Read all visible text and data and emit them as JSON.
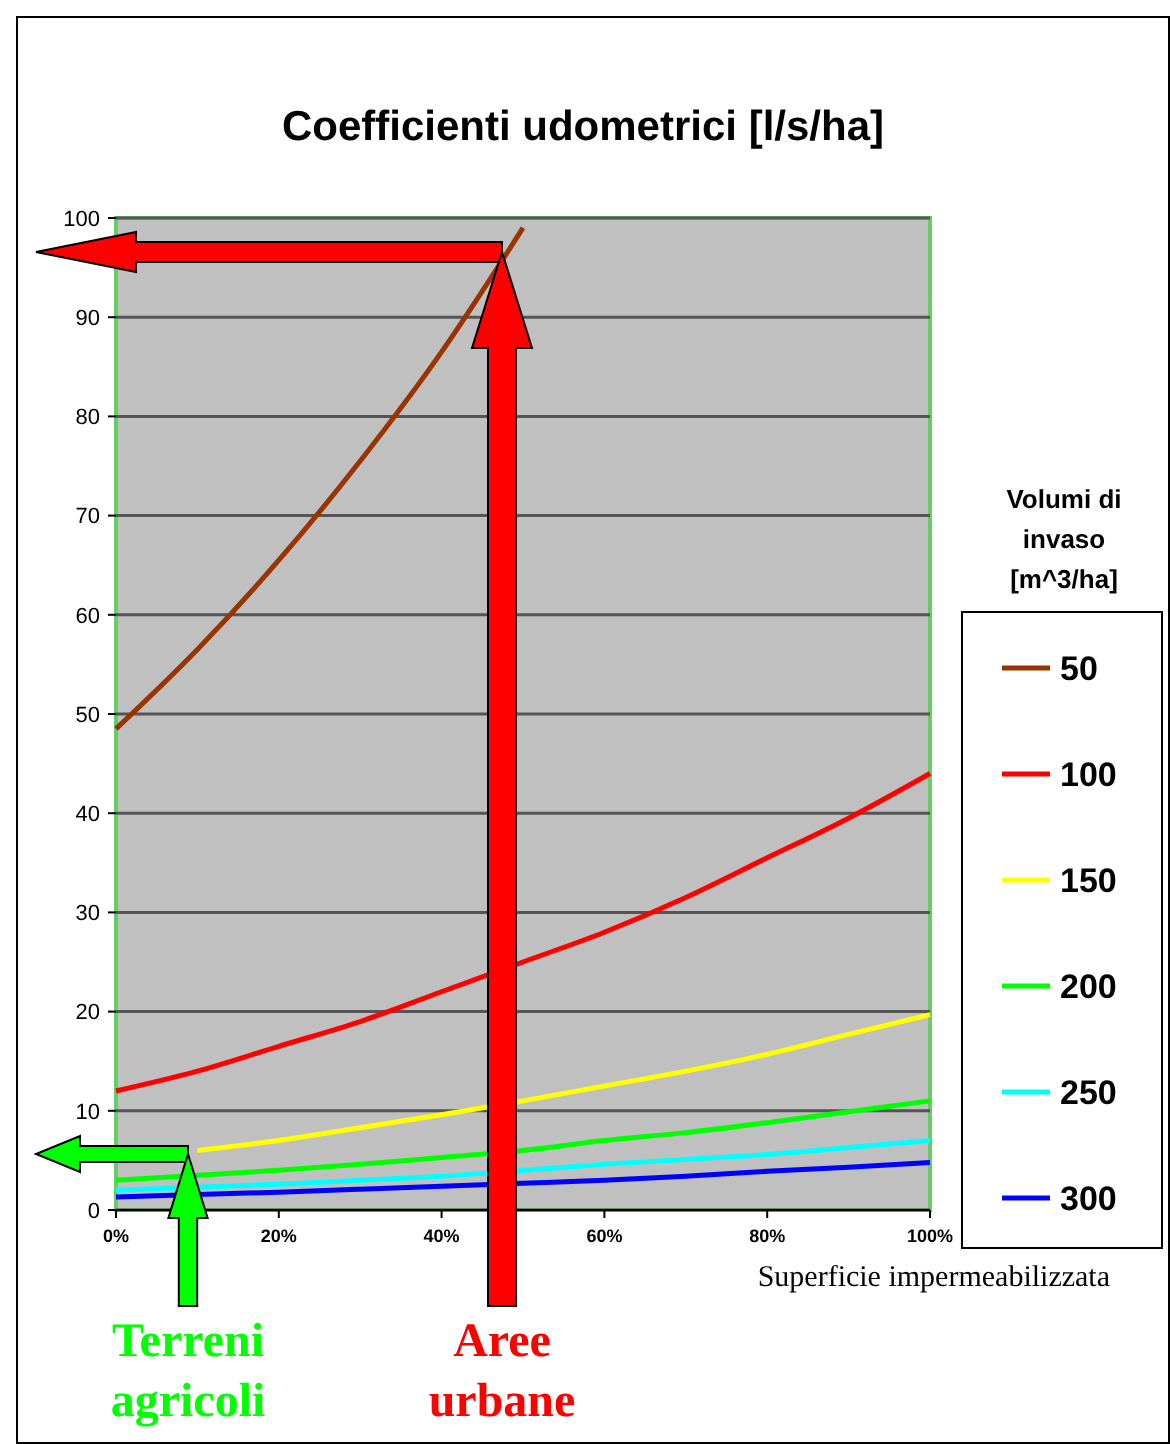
{
  "chart_data": {
    "type": "line",
    "title": "Coefficienti udometrici [l/s/ha]",
    "xlabel": "Superficie impermeabilizzata",
    "legend_title": "Volumi di invaso [m^3/ha]",
    "x": [
      0,
      0.1,
      0.2,
      0.3,
      0.4,
      0.5,
      0.6,
      0.7,
      0.8,
      0.9,
      1
    ],
    "series": [
      {
        "name": "50",
        "color": "#993300",
        "x": [
          0,
          0.1,
          0.2,
          0.3,
          0.4,
          0.5
        ],
        "values": [
          48.5,
          56.5,
          65.5,
          75.5,
          86.5,
          99
        ]
      },
      {
        "name": "100",
        "color": "#ff0000",
        "values": [
          12,
          14,
          16.5,
          19,
          22,
          25,
          28,
          31.5,
          35.5,
          39.5,
          44
        ]
      },
      {
        "name": "150",
        "color": "#ffff00",
        "values": [
          null,
          6,
          7,
          8.3,
          9.6,
          11,
          12.5,
          14,
          15.7,
          17.7,
          19.7
        ]
      },
      {
        "name": "200",
        "color": "#00ff00",
        "x": [
          0,
          0.2,
          0.3,
          0.4,
          0.5,
          0.6,
          0.7,
          0.8,
          0.9,
          1
        ],
        "values": [
          3,
          4,
          4.6,
          5.3,
          6,
          7,
          7.8,
          8.8,
          9.9,
          11
        ]
      },
      {
        "name": "250",
        "color": "#00ffff",
        "x": [
          0,
          0.2,
          0.3,
          0.4,
          0.5,
          0.6,
          0.7,
          0.8,
          0.9,
          1
        ],
        "values": [
          2,
          2.6,
          3,
          3.4,
          4,
          4.6,
          5.1,
          5.6,
          6.3,
          7
        ]
      },
      {
        "name": "300",
        "color": "#0000ff",
        "x": [
          0,
          0.2,
          0.3,
          0.4,
          0.5,
          0.6,
          0.7,
          0.8,
          0.9,
          1
        ],
        "values": [
          1.3,
          1.8,
          2.1,
          2.4,
          2.7,
          3,
          3.4,
          3.9,
          4.3,
          4.8
        ]
      }
    ],
    "xlim": [
      0,
      1
    ],
    "xticks": [
      {
        "value": 0,
        "label": "0%"
      },
      {
        "value": 0.2,
        "label": "20%"
      },
      {
        "value": 0.4,
        "label": "40%"
      },
      {
        "value": 0.6,
        "label": "60%"
      },
      {
        "value": 0.8,
        "label": "80%"
      },
      {
        "value": 1,
        "label": "100%"
      }
    ],
    "ylim": [
      0,
      100
    ],
    "yticks": [
      0,
      10,
      20,
      30,
      40,
      50,
      60,
      70,
      80,
      90,
      100
    ],
    "grid": "y",
    "legend": "right",
    "marker": "none",
    "line_style": "solid",
    "annotations": [
      "Terreni agricoli",
      "Aree urbane"
    ]
  }
}
